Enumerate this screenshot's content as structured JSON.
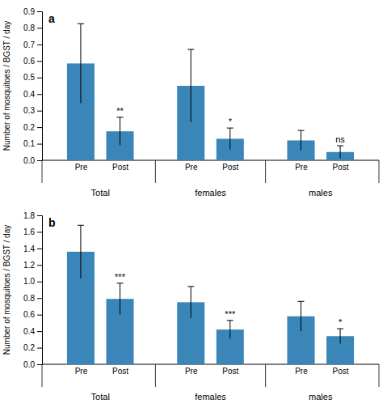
{
  "chart_data": [
    {
      "type": "bar",
      "title": "a",
      "ylabel": "Number of mosquitoes / BGST / day",
      "categories": [
        "Pre",
        "Post",
        "Pre",
        "Post",
        "Pre",
        "Post"
      ],
      "groups": [
        "Total",
        "Total",
        "females",
        "females",
        "males",
        "males"
      ],
      "values": [
        0.585,
        0.175,
        0.45,
        0.13,
        0.12,
        0.05
      ],
      "errors": [
        0.24,
        0.085,
        0.22,
        0.065,
        0.06,
        0.038
      ],
      "significance": [
        null,
        "**",
        null,
        "*",
        null,
        "ns"
      ],
      "color": "#3a86b8",
      "ylim": [
        0,
        0.9
      ],
      "yticks": [
        {
          "value": 0,
          "label": "0.0"
        },
        0.1,
        0.2,
        0.3,
        0.4,
        0.5,
        0.6,
        0.7,
        0.8,
        0.9
      ]
    },
    {
      "type": "bar",
      "title": "b",
      "ylabel": "Number of mosquitoes / BGST / day",
      "categories": [
        "Pre",
        "Post",
        "Pre",
        "Post",
        "Pre",
        "Post"
      ],
      "groups": [
        "Total",
        "Total",
        "females",
        "females",
        "males",
        "males"
      ],
      "values": [
        1.36,
        0.79,
        0.75,
        0.42,
        0.58,
        0.34
      ],
      "errors": [
        0.32,
        0.19,
        0.19,
        0.11,
        0.18,
        0.09
      ],
      "significance": [
        null,
        "***",
        null,
        "***",
        null,
        "*"
      ],
      "color": "#3a86b8",
      "ylim": [
        0,
        1.8
      ],
      "yticks": [
        {
          "value": 0,
          "label": "0.0"
        },
        0.2,
        0.4,
        0.6,
        0.8,
        {
          "value": 1,
          "label": "1.0"
        },
        1.2,
        1.4,
        1.6,
        1.8
      ]
    }
  ]
}
